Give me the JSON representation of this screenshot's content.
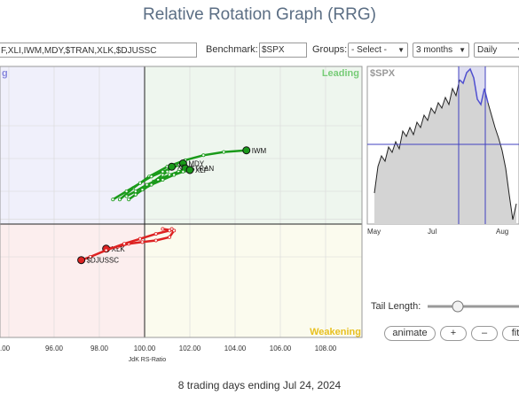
{
  "title": "Relative Rotation Graph (RRG)",
  "toolbar": {
    "symbols_value": "F,XLI,IWM,MDY,$TRAN,XLK,$DJUSSC",
    "benchmark_label": "Benchmark:",
    "benchmark_value": "$SPX",
    "groups_label": "Groups:",
    "groups_value": "- Select -",
    "period_value": "3 months",
    "frequency_value": "Daily"
  },
  "quadrants": {
    "leading": "Leading",
    "weakening": "Weakening",
    "improving_partial": "g"
  },
  "x_axis": {
    "label": "JdK RS-Ratio",
    "ticks": [
      ".00",
      "96.00",
      "98.00",
      "100.00",
      "102.00",
      "104.00",
      "106.00",
      "108.00"
    ]
  },
  "price_chart": {
    "symbol": "$SPX",
    "months": [
      "May",
      "Jul",
      "Aug"
    ]
  },
  "tail_length_label": "Tail Length:",
  "buttons": {
    "animate": "animate",
    "plus": "+",
    "minus": "–",
    "fit": "fit"
  },
  "footer": "8 trading days ending Jul 24, 2024",
  "colors": {
    "leading_fill": "#eef6ee",
    "weakening_fill": "#fbfbee",
    "lagging_fill": "#fceeee",
    "improving_fill": "#f0f0fb",
    "green_tail": "#1a9a1a",
    "red_tail": "#dd2222",
    "price_line": "#222222",
    "highlight_line": "#5050d0",
    "highlight_fill": "#c8c8e6"
  },
  "chart_data": {
    "type": "scatter",
    "xlabel": "JdK RS-Ratio",
    "xlim": [
      94,
      109
    ],
    "series": [
      {
        "name": "IWM",
        "color": "green",
        "x": [
          98.9,
          99.5,
          100.2,
          101.0,
          101.8,
          102.6,
          103.5,
          104.5
        ],
        "y": [
          101.5,
          102.2,
          102.9,
          103.5,
          103.9,
          104.2,
          104.4,
          104.5
        ]
      },
      {
        "name": "MDY",
        "color": "green",
        "x": [
          98.6,
          99.2,
          99.8,
          100.3,
          100.8,
          101.2,
          101.5,
          101.7
        ],
        "y": [
          101.5,
          102.0,
          102.5,
          102.9,
          103.2,
          103.4,
          103.6,
          103.7
        ]
      },
      {
        "name": "XLI",
        "color": "green",
        "x": [
          99.3,
          99.6,
          100.0,
          100.4,
          100.8,
          101.0,
          101.1,
          101.2
        ],
        "y": [
          101.5,
          101.8,
          102.2,
          102.6,
          103.0,
          103.2,
          103.4,
          103.5
        ]
      },
      {
        "name": "$TRAN",
        "color": "green",
        "x": [
          99.2,
          99.6,
          100.1,
          100.6,
          101.1,
          101.5,
          101.7,
          101.8
        ],
        "y": [
          101.7,
          102.0,
          102.4,
          102.7,
          103.0,
          103.2,
          103.3,
          103.4
        ]
      },
      {
        "name": "XLF",
        "color": "green",
        "x": [
          99.6,
          99.9,
          100.3,
          100.8,
          101.3,
          101.7,
          101.9,
          102.0
        ],
        "y": [
          101.8,
          102.1,
          102.4,
          102.7,
          103.0,
          103.2,
          103.3,
          103.3
        ]
      },
      {
        "name": "XLK",
        "color": "red",
        "x": [
          100.8,
          101.3,
          101.1,
          100.5,
          99.9,
          99.3,
          98.8,
          98.3
        ],
        "y": [
          99.7,
          99.6,
          99.2,
          99.0,
          98.9,
          98.8,
          98.6,
          98.5
        ]
      },
      {
        "name": "$DJUSSC",
        "color": "red",
        "x": [
          101.2,
          101.1,
          100.5,
          99.8,
          99.1,
          98.3,
          97.6,
          97.2
        ],
        "y": [
          99.7,
          99.6,
          99.4,
          99.1,
          98.8,
          98.4,
          98.0,
          97.8
        ]
      }
    ]
  }
}
